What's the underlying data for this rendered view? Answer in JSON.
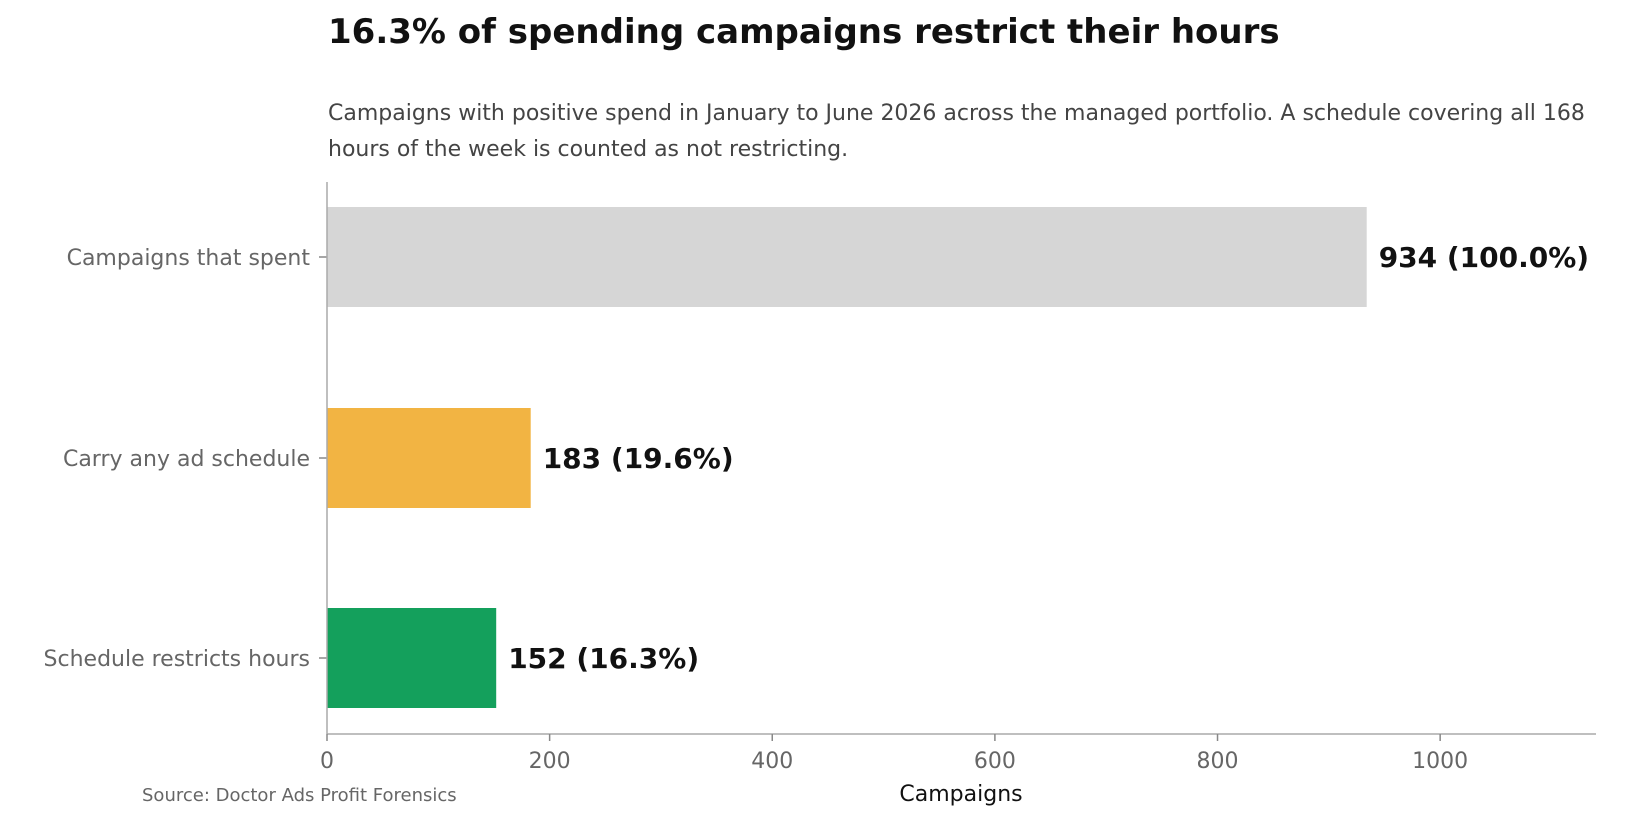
{
  "title": "16.3% of spending campaigns restrict their hours",
  "subtitle": "Campaigns with positive spend in January to June 2026 across the managed portfolio. A schedule covering all 168 hours of the week is counted as not restricting.",
  "source": "Source: Doctor Ads Profit Forensics",
  "chart_data": {
    "type": "bar",
    "orientation": "horizontal",
    "title": "16.3% of spending campaigns restrict their hours",
    "xlabel": "Campaigns",
    "ylabel": "",
    "categories": [
      "Campaigns that spent",
      "Carry any ad schedule",
      "Schedule restricts hours"
    ],
    "values": [
      934,
      183,
      152
    ],
    "value_labels": [
      "934 (100.0%)",
      "183 (19.6%)",
      "152 (16.3%)"
    ],
    "colors": [
      "#d6d6d6",
      "#f2b443",
      "#14a05c"
    ],
    "xlim": [
      0,
      1140
    ],
    "xticks": [
      0,
      200,
      400,
      600,
      800,
      1000
    ],
    "xtick_labels": [
      "0",
      "200",
      "400",
      "600",
      "800",
      "1000"
    ],
    "grid": false
  }
}
